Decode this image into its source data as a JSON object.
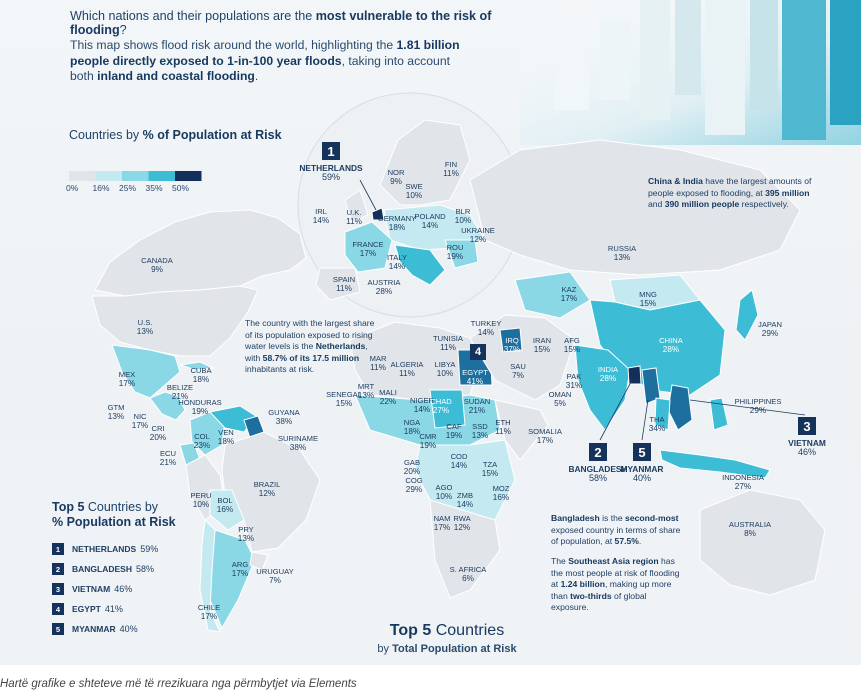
{
  "headline": {
    "pre": "Which nations and their populations are the ",
    "bold": "most vulnerable to the risk of flooding",
    "post": "?"
  },
  "intro": {
    "p1": "This map shows flood risk around the world, highlighting the ",
    "b1": "1.81 billion people directly exposed to 1-in-100 year floods",
    "p2": ", taking into account both ",
    "b2": "inland and coastal flooding",
    "p3": "."
  },
  "legend": {
    "title_pre": "Countries by ",
    "title_bold": "% of Population at Risk",
    "labels": [
      "0%",
      "16%",
      "25%",
      "35%",
      "50%"
    ],
    "colors": [
      "#e1e5e9",
      "#c4e9f1",
      "#8ad7e6",
      "#3dbcd6",
      "#1d6f9f",
      "#13305a"
    ]
  },
  "countries": [
    {
      "id": "canada",
      "name": "CANADA",
      "value": "9%"
    },
    {
      "id": "us",
      "name": "U.S.",
      "value": "13%"
    },
    {
      "id": "mexico",
      "name": "MEX",
      "value": "17%"
    },
    {
      "id": "cuba",
      "name": "CUBA",
      "value": "18%"
    },
    {
      "id": "belize",
      "name": "BELIZE",
      "value": "21%"
    },
    {
      "id": "honduras",
      "name": "HONDURAS",
      "value": "19%"
    },
    {
      "id": "guatemala",
      "name": "GTM",
      "value": "13%"
    },
    {
      "id": "nicaragua",
      "name": "NIC",
      "value": "17%"
    },
    {
      "id": "costa-rica",
      "name": "CRI",
      "value": "20%"
    },
    {
      "id": "venezuela",
      "name": "VEN",
      "value": "18%"
    },
    {
      "id": "colombia",
      "name": "COL",
      "value": "23%"
    },
    {
      "id": "guyana",
      "name": "GUYANA",
      "value": "38%"
    },
    {
      "id": "suriname",
      "name": "SURINAME",
      "value": "38%"
    },
    {
      "id": "ecuador",
      "name": "ECU",
      "value": "21%"
    },
    {
      "id": "brazil",
      "name": "BRAZIL",
      "value": "12%"
    },
    {
      "id": "peru",
      "name": "PERU",
      "value": "10%"
    },
    {
      "id": "bolivia",
      "name": "BOL",
      "value": "16%"
    },
    {
      "id": "paraguay",
      "name": "PRY",
      "value": "13%"
    },
    {
      "id": "argentina",
      "name": "ARG",
      "value": "17%"
    },
    {
      "id": "uruguay",
      "name": "URUGUAY",
      "value": "7%"
    },
    {
      "id": "chile",
      "name": "CHILE",
      "value": "17%"
    },
    {
      "id": "ireland",
      "name": "IRL",
      "value": "14%"
    },
    {
      "id": "uk",
      "name": "U.K.",
      "value": "11%"
    },
    {
      "id": "norway",
      "name": "NOR",
      "value": "9%"
    },
    {
      "id": "sweden",
      "name": "SWE",
      "value": "10%"
    },
    {
      "id": "finland",
      "name": "FIN",
      "value": "11%"
    },
    {
      "id": "germany",
      "name": "GERMANY",
      "value": "18%"
    },
    {
      "id": "poland",
      "name": "POLAND",
      "value": "14%"
    },
    {
      "id": "belarus",
      "name": "BLR",
      "value": "10%"
    },
    {
      "id": "ukraine",
      "name": "UKRAINE",
      "value": "12%"
    },
    {
      "id": "france",
      "name": "FRANCE",
      "value": "17%"
    },
    {
      "id": "italy",
      "name": "ITALY",
      "value": "14%"
    },
    {
      "id": "romania",
      "name": "ROU",
      "value": "19%"
    },
    {
      "id": "spain",
      "name": "SPAIN",
      "value": "11%"
    },
    {
      "id": "austria",
      "name": "AUSTRIA",
      "value": "28%"
    },
    {
      "id": "russia",
      "name": "RUSSIA",
      "value": "13%"
    },
    {
      "id": "kazakhstan",
      "name": "KAZ",
      "value": "17%"
    },
    {
      "id": "mongolia",
      "name": "MNG",
      "value": "15%"
    },
    {
      "id": "china",
      "name": "CHINA",
      "value": "28%"
    },
    {
      "id": "japan",
      "name": "JAPAN",
      "value": "29%"
    },
    {
      "id": "turkey",
      "name": "TURKEY",
      "value": "14%"
    },
    {
      "id": "iraq",
      "name": "IRQ",
      "value": "37%"
    },
    {
      "id": "iran",
      "name": "IRAN",
      "value": "15%"
    },
    {
      "id": "afghanistan",
      "name": "AFG",
      "value": "15%"
    },
    {
      "id": "pakistan",
      "name": "PAK",
      "value": "31%"
    },
    {
      "id": "india",
      "name": "INDIA",
      "value": "28%"
    },
    {
      "id": "saudi-arabia",
      "name": "SAU",
      "value": "7%"
    },
    {
      "id": "oman",
      "name": "OMAN",
      "value": "5%"
    },
    {
      "id": "thailand",
      "name": "THA",
      "value": "34%"
    },
    {
      "id": "philippines",
      "name": "PHILIPPINES",
      "value": "29%"
    },
    {
      "id": "indonesia",
      "name": "INDONESIA",
      "value": "27%"
    },
    {
      "id": "australia",
      "name": "AUSTRALIA",
      "value": "8%"
    },
    {
      "id": "tunisia",
      "name": "TUNISIA",
      "value": "11%"
    },
    {
      "id": "morocco",
      "name": "MAR",
      "value": "11%"
    },
    {
      "id": "algeria",
      "name": "ALGERIA",
      "value": "11%"
    },
    {
      "id": "libya",
      "name": "LIBYA",
      "value": "10%"
    },
    {
      "id": "egypt",
      "name": "EGYPT",
      "value": "41%"
    },
    {
      "id": "mauritania",
      "name": "MRT",
      "value": "13%"
    },
    {
      "id": "mali",
      "name": "MALI",
      "value": "22%"
    },
    {
      "id": "senegal",
      "name": "SENEGAL",
      "value": "15%"
    },
    {
      "id": "niger",
      "name": "NIGER",
      "value": "14%"
    },
    {
      "id": "chad",
      "name": "CHAD",
      "value": "27%"
    },
    {
      "id": "sudan",
      "name": "SUDAN",
      "value": "21%"
    },
    {
      "id": "nigeria",
      "name": "NGA",
      "value": "18%"
    },
    {
      "id": "cameroon",
      "name": "CMR",
      "value": "19%"
    },
    {
      "id": "car",
      "name": "CAF",
      "value": "19%"
    },
    {
      "id": "south-sudan",
      "name": "SSD",
      "value": "13%"
    },
    {
      "id": "ethiopia",
      "name": "ETH",
      "value": "11%"
    },
    {
      "id": "somalia",
      "name": "SOMALIA",
      "value": "17%"
    },
    {
      "id": "gabon",
      "name": "GAB",
      "value": "20%"
    },
    {
      "id": "congo",
      "name": "COG",
      "value": "29%"
    },
    {
      "id": "drc",
      "name": "COD",
      "value": "14%"
    },
    {
      "id": "tanzania",
      "name": "TZA",
      "value": "15%"
    },
    {
      "id": "angola",
      "name": "AGO",
      "value": "10%"
    },
    {
      "id": "zambia",
      "name": "ZMB",
      "value": "14%"
    },
    {
      "id": "mozambique",
      "name": "MOZ",
      "value": "16%"
    },
    {
      "id": "namibia",
      "name": "NAM",
      "value": "17%"
    },
    {
      "id": "zimbabwe",
      "name": "RWA",
      "value": "12%"
    },
    {
      "id": "south-africa",
      "name": "S. AFRICA",
      "value": "6%"
    }
  ],
  "callouts": {
    "netherlands": {
      "rank": "1",
      "name": "NETHERLANDS",
      "value": "59%"
    },
    "bangladesh": {
      "rank": "2",
      "name": "BANGLADESH",
      "value": "58%"
    },
    "vietnam": {
      "rank": "3",
      "name": "VIETNAM",
      "value": "46%"
    },
    "egypt": {
      "rank": "4"
    },
    "myanmar": {
      "rank": "5",
      "name": "MYANMAR",
      "value": "40%"
    }
  },
  "notes": {
    "china_india": {
      "b1": "China & India",
      "p1": " have the largest amounts of people exposed to flooding, at ",
      "b2": "395 million",
      "p2": " and ",
      "b3": "390 million people",
      "p3": " respectively."
    },
    "netherlands": {
      "p1": "The country with the largest share of its population exposed to rising water levels is the ",
      "b1": "Netherlands",
      "p2": ", with ",
      "b2": "58.7% of its 17.5 million",
      "p3": " inhabitants at risk."
    },
    "bangladesh": {
      "b1": "Bangladesh",
      "p1": " is the ",
      "b2": "second-most",
      "p2": " exposed country in terms of share of population, at ",
      "b3": "57.5%",
      "p3": "."
    },
    "sea": {
      "p1": "The ",
      "b1": "Southeast Asia region",
      "p2": " has the most people at risk of flooding at ",
      "b2": "1.24 billion",
      "p3": ", making up more than ",
      "b3": "two-thirds",
      "p4": " of global exposure."
    }
  },
  "top5_by_share": {
    "title_bold1": "Top 5",
    "title_mid": " Countries by",
    "title_bold2": "% Population at Risk",
    "rows": [
      {
        "rank": "1",
        "name": "NETHERLANDS",
        "value": "59%"
      },
      {
        "rank": "2",
        "name": "BANGLADESH",
        "value": "58%"
      },
      {
        "rank": "3",
        "name": "VIETNAM",
        "value": "46%"
      },
      {
        "rank": "4",
        "name": "EGYPT",
        "value": "41%"
      },
      {
        "rank": "5",
        "name": "MYANMAR",
        "value": "40%"
      }
    ]
  },
  "top5_by_total": {
    "bold": "Top 5",
    "rest": " Countries",
    "line2_pre": "by ",
    "line2_bold": "Total Population at Risk"
  },
  "caption": "Hartë grafike e shteteve më të rrezikuara nga përmbytjet via Elements"
}
